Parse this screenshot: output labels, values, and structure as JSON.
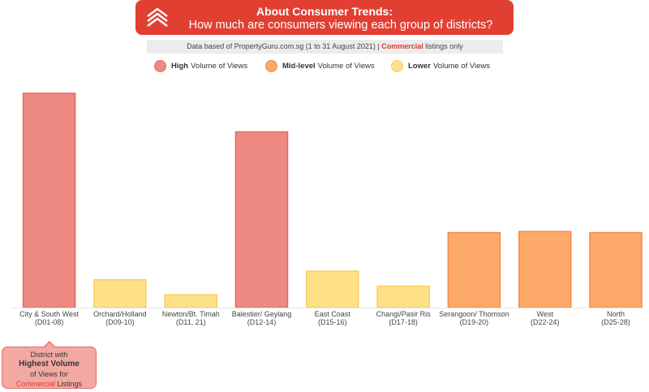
{
  "header": {
    "title": "About Consumer Trends:",
    "subtitle": "How much are consumers viewing each group of districts?"
  },
  "source": {
    "prefix": "Data based of PropertyGuru.com.sg (1 to 31 August 2021) |",
    "highlight": "Commercial",
    "suffix": "listings only"
  },
  "legend": [
    {
      "bold": "High",
      "rest": "Volume of Views",
      "color": "#ec8a82",
      "border": "#e5675d"
    },
    {
      "bold": "Mid-level",
      "rest": "Volume of Views",
      "color": "#fca96a",
      "border": "#f28a47"
    },
    {
      "bold": "Lower",
      "rest": "Volume of Views",
      "color": "#fde087",
      "border": "#f7cf5c"
    }
  ],
  "colors": {
    "high": "#ec8a82",
    "high_border": "#e5675d",
    "mid": "#fca96a",
    "mid_border": "#f28a47",
    "low": "#fde087",
    "low_border": "#f7cf5c"
  },
  "chart_data": {
    "type": "bar",
    "categories": [
      "City & South West (D01-08)",
      "Orchard/Holland (D09-10)",
      "Newton/Bt. Timah (D11, 21)",
      "Balestier/ Geylang (D12-14)",
      "East Coast (D15-16)",
      "Changi/Pasir Ris (D17-18)",
      "Serangoon/ Thomson (D19-20)",
      "West (D22-24)",
      "North (D25-28)"
    ],
    "labels_line1": [
      "City & South West",
      "Orchard/Holland",
      "Newton/Bt. Timah",
      "Balestier/ Geylang",
      "East Coast",
      "Changi/Pasir Ris",
      "Serangoon/ Thomson",
      "West",
      "North"
    ],
    "labels_line2": [
      "(D01-08)",
      "(D09-10)",
      "(D11, 21)",
      "(D12-14)",
      "(D15-16)",
      "(D17-18)",
      "(D19-20)",
      "(D22-24)",
      "(D25-28)"
    ],
    "values": [
      100,
      13,
      6,
      82,
      17,
      10,
      35,
      35.5,
      35
    ],
    "levels": [
      "high",
      "low",
      "low",
      "high",
      "low",
      "low",
      "mid",
      "mid",
      "mid"
    ],
    "ylim": [
      0,
      100
    ],
    "grid": false,
    "legend_position": "top"
  },
  "callout": {
    "line1": "District with",
    "line2": "Highest Volume",
    "line3": "of Views for",
    "line4_red": "Commercial",
    "line4_rest": "Listings"
  }
}
